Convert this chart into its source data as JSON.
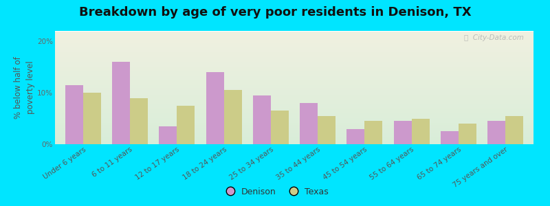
{
  "title": "Breakdown by age of very poor residents in Denison, TX",
  "ylabel": "% below half of\npoverty level",
  "categories": [
    "Under 6 years",
    "6 to 11 years",
    "12 to 17 years",
    "18 to 24 years",
    "25 to 34 years",
    "35 to 44 years",
    "45 to 54 years",
    "55 to 64 years",
    "65 to 74 years",
    "75 years and over"
  ],
  "denison": [
    11.5,
    16.0,
    3.5,
    14.0,
    9.5,
    8.0,
    3.0,
    4.5,
    2.5,
    4.5
  ],
  "texas": [
    10.0,
    9.0,
    7.5,
    10.5,
    6.5,
    5.5,
    4.5,
    5.0,
    4.0,
    5.5
  ],
  "denison_color": "#cc99cc",
  "texas_color": "#cccc88",
  "bar_width": 0.38,
  "ylim": [
    0,
    22
  ],
  "yticks": [
    0,
    10,
    20
  ],
  "ytick_labels": [
    "0%",
    "10%",
    "20%"
  ],
  "background_outer": "#00e5ff",
  "background_plot_top": "#f0f0e0",
  "background_plot_bottom": "#d8edd8",
  "title_fontsize": 13,
  "label_fontsize": 8.5,
  "tick_fontsize": 7.5,
  "legend_labels": [
    "Denison",
    "Texas"
  ],
  "watermark": "ⓘ  City-Data.com"
}
